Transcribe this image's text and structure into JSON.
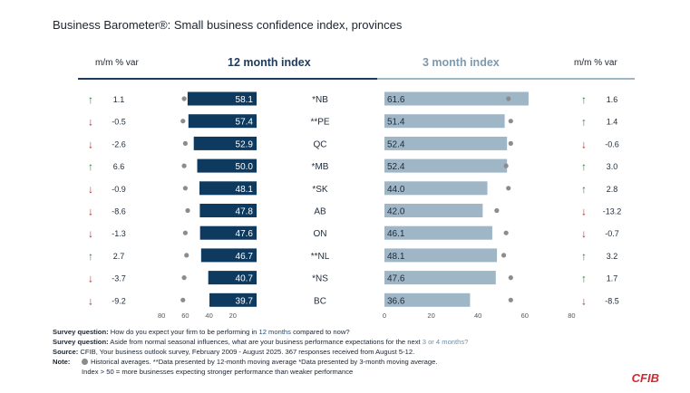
{
  "title": "Business Barometer®: Small business confidence index, provinces",
  "headers": {
    "left_var": "m/m % var",
    "index12": "12 month index",
    "index3": "3 month index",
    "right_var": "m/m % var"
  },
  "colors": {
    "bar12": "#0f3a5f",
    "bar3": "#9fb6c6",
    "marker": "#8c8c8c",
    "up": "#2e7d32",
    "down": "#c62828"
  },
  "chart_data": {
    "type": "bar",
    "title": "Business Barometer®: Small business confidence index, provinces",
    "categories": [
      "*NB",
      "**PE",
      "QC",
      "*MB",
      "*SK",
      "AB",
      "ON",
      "**NL",
      "*NS",
      "BC"
    ],
    "series": [
      {
        "name": "12 month index",
        "values": [
          58.1,
          57.4,
          52.9,
          50.0,
          48.1,
          47.8,
          47.6,
          46.7,
          40.7,
          39.7
        ],
        "historical_averages": [
          61,
          62,
          60,
          61,
          60,
          58,
          60,
          59,
          61,
          62
        ],
        "mm_var": [
          "1.1",
          "-0.5",
          "-2.6",
          "6.6",
          "-0.9",
          "-8.6",
          "-1.3",
          "2.7",
          "-3.7",
          "-9.2"
        ]
      },
      {
        "name": "3 month index",
        "values": [
          61.6,
          51.4,
          52.4,
          52.4,
          44.0,
          42.0,
          46.1,
          48.1,
          47.6,
          36.6
        ],
        "historical_averages": [
          53,
          54,
          54,
          52,
          53,
          48,
          52,
          51,
          54,
          54
        ],
        "mm_var": [
          "1.6",
          "1.4",
          "-0.6",
          "3.0",
          "2.8",
          "-13.2",
          "-0.7",
          "3.2",
          "1.7",
          "-8.5"
        ]
      }
    ],
    "axis_left": {
      "ticks": [
        "80",
        "60",
        "40",
        "20"
      ],
      "range": [
        0,
        80
      ],
      "direction": "reversed"
    },
    "axis_right": {
      "ticks": [
        "0",
        "20",
        "40",
        "60",
        "80"
      ],
      "range": [
        0,
        80
      ]
    }
  },
  "notes": {
    "q1_label": "Survey question:",
    "q1_text_a": " How do you expect your firm to be performing in ",
    "q1_highlight": "12 months",
    "q1_text_b": " compared to now?",
    "q2_label": "Survey question:",
    "q2_text_a": " Aside from normal seasonal influences, what are your business performance expectations for the next ",
    "q2_highlight": "3 or 4 months?",
    "source_label": "Source:",
    "source_text": " CFIB, Your business outlook survey, February 2009 - August 2025. 367 responses received from August 5-12.",
    "note_label": "Note:",
    "note_text1": "Historical averages. **Data presented by 12-month moving average *Data presented by 3-month moving average.",
    "note_text2": "Index > 50 = more businesses expecting stronger performance than weaker performance"
  },
  "logo": "CFIB"
}
